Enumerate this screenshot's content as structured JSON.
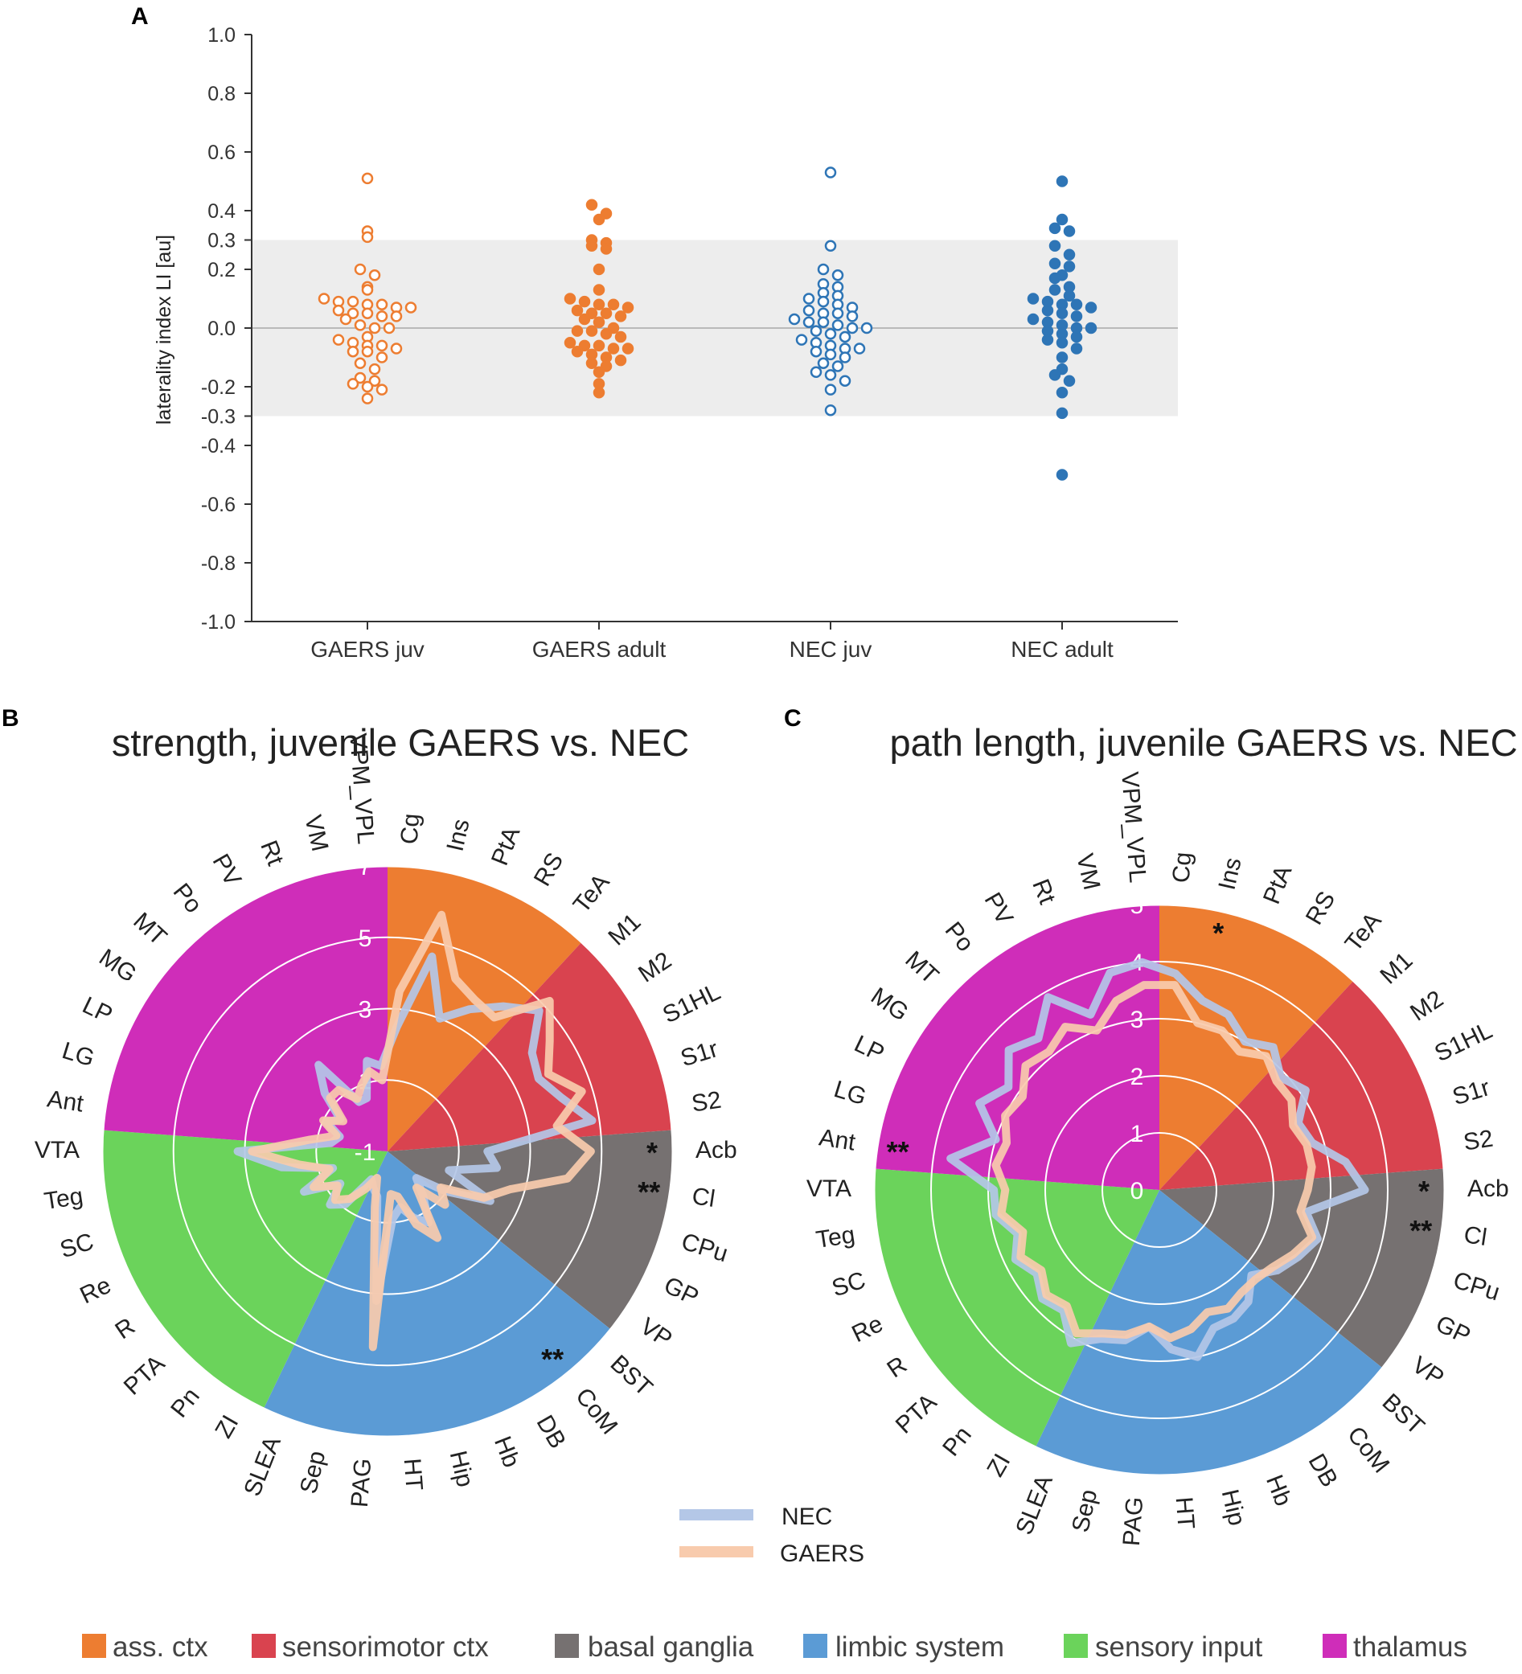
{
  "panels": {
    "A": {
      "label": "A",
      "chart_data": {
        "type": "scatter",
        "ylabel": "laterality index LI [au]",
        "ylim": [
          -1.0,
          1.0
        ],
        "yticks": [
          "1.0",
          "0.8",
          "0.6",
          "0.4",
          "0.3",
          "0.2",
          "0.0",
          "-0.2",
          "-0.3",
          "-0.4",
          "-0.6",
          "-0.8",
          "-1.0"
        ],
        "ytick_values": [
          1.0,
          0.8,
          0.6,
          0.4,
          0.3,
          0.2,
          0.0,
          -0.2,
          -0.3,
          -0.4,
          -0.6,
          -0.8,
          -1.0
        ],
        "shaded_band": [
          -0.3,
          0.3
        ],
        "categories": [
          "GAERS juv",
          "GAERS adult",
          "NEC  juv",
          "NEC adult"
        ],
        "series": [
          {
            "name": "GAERS juv",
            "color": "#ed7d31",
            "filled": false,
            "values": [
              0.51,
              0.33,
              0.31,
              0.2,
              0.18,
              0.14,
              0.13,
              0.1,
              0.09,
              0.09,
              0.08,
              0.08,
              0.07,
              0.07,
              0.06,
              0.05,
              0.05,
              0.04,
              0.04,
              0.03,
              0.01,
              0.0,
              0.0,
              -0.03,
              -0.04,
              -0.05,
              -0.06,
              -0.06,
              -0.07,
              -0.08,
              -0.08,
              -0.1,
              -0.12,
              -0.14,
              -0.17,
              -0.18,
              -0.19,
              -0.2,
              -0.21,
              -0.24
            ]
          },
          {
            "name": "GAERS adult",
            "color": "#ed7d31",
            "filled": true,
            "values": [
              0.42,
              0.39,
              0.37,
              0.3,
              0.29,
              0.28,
              0.27,
              0.2,
              0.13,
              0.1,
              0.09,
              0.08,
              0.08,
              0.07,
              0.06,
              0.05,
              0.05,
              0.04,
              0.03,
              0.02,
              0.0,
              -0.01,
              -0.01,
              -0.02,
              -0.03,
              -0.05,
              -0.06,
              -0.06,
              -0.07,
              -0.07,
              -0.08,
              -0.09,
              -0.1,
              -0.11,
              -0.12,
              -0.13,
              -0.15,
              -0.19,
              -0.22
            ]
          },
          {
            "name": "NEC  juv",
            "color": "#2e75b6",
            "filled": false,
            "values": [
              0.53,
              0.28,
              0.2,
              0.18,
              0.15,
              0.14,
              0.12,
              0.11,
              0.1,
              0.09,
              0.08,
              0.07,
              0.06,
              0.05,
              0.05,
              0.04,
              0.03,
              0.02,
              0.02,
              0.01,
              0.0,
              0.0,
              -0.01,
              -0.02,
              -0.03,
              -0.04,
              -0.05,
              -0.06,
              -0.07,
              -0.07,
              -0.08,
              -0.09,
              -0.1,
              -0.12,
              -0.13,
              -0.15,
              -0.16,
              -0.18,
              -0.21,
              -0.28
            ]
          },
          {
            "name": "NEC adult",
            "color": "#2e75b6",
            "filled": true,
            "values": [
              0.5,
              0.37,
              0.34,
              0.33,
              0.28,
              0.25,
              0.22,
              0.21,
              0.18,
              0.17,
              0.14,
              0.13,
              0.11,
              0.1,
              0.09,
              0.08,
              0.08,
              0.07,
              0.06,
              0.05,
              0.04,
              0.03,
              0.02,
              0.01,
              0.0,
              0.0,
              -0.01,
              -0.02,
              -0.03,
              -0.04,
              -0.05,
              -0.07,
              -0.1,
              -0.14,
              -0.16,
              -0.18,
              -0.22,
              -0.29,
              -0.5
            ]
          }
        ]
      }
    },
    "B": {
      "label": "B",
      "chart_data": {
        "type": "radar",
        "title": "strength, juvenile GAERS vs. NEC",
        "range": [
          -1,
          7
        ],
        "ring_labels": [
          "-1",
          "1",
          "3",
          "5",
          "7"
        ],
        "ring_values": [
          -1,
          1,
          3,
          5,
          7
        ],
        "spokes": [
          "Cg",
          "Ins",
          "PtA",
          "RS",
          "TeA",
          "M1",
          "M2",
          "S1HL",
          "S1r",
          "S2",
          "Acb",
          "Cl",
          "CPu",
          "GP",
          "VP",
          "BST",
          "CoM",
          "DB",
          "Hb",
          "Hip",
          "HT",
          "PAG",
          "Sep",
          "SLEA",
          "ZI",
          "Pn",
          "PTA",
          "R",
          "Re",
          "SC",
          "Teg",
          "VTA",
          "Ant",
          "LG",
          "LP",
          "MG",
          "MT",
          "Po",
          "PV",
          "Rt",
          "VM",
          "VPM_VPL"
        ],
        "series": [
          {
            "name": "NEC",
            "color": "#b4c7e7",
            "values": [
              2.5,
              4.6,
              3.0,
              3.6,
              4.2,
              4.8,
              3.9,
              3.7,
              4.1,
              4.8,
              1.8,
              2.1,
              0.8,
              2.2,
              1.0,
              0.1,
              0.6,
              1.3,
              1.0,
              0.6,
              0.9,
              3.2,
              0.3,
              0.1,
              -0.1,
              0.9,
              1.2,
              0.6,
              1.6,
              0.6,
              2.0,
              3.2,
              0.6,
              0.4,
              0.9,
              0.6,
              1.4,
              2.1,
              0.6,
              0.6,
              1.6,
              1.4
            ]
          },
          {
            "name": "GAERS",
            "color": "#f8cbad",
            "values": [
              3.5,
              5.8,
              4.2,
              3.9,
              3.8,
              5.2,
              4.5,
              4.0,
              4.7,
              3.8,
              4.7,
              4.1,
              2.6,
              2.0,
              0.8,
              1.2,
              0.3,
              1.8,
              1.2,
              0.3,
              0.2,
              4.5,
              0.6,
              -0.2,
              0.2,
              0.7,
              1.0,
              0.7,
              1.3,
              0.7,
              1.5,
              2.8,
              1.2,
              0.5,
              1.0,
              0.5,
              1.2,
              1.2,
              0.7,
              1.0,
              1.3,
              1.0
            ]
          }
        ],
        "significance": [
          {
            "spoke": "Acb",
            "mark": "*"
          },
          {
            "spoke": "Cl",
            "mark": "**"
          },
          {
            "spoke": "CoM",
            "mark": "**"
          }
        ]
      }
    },
    "C": {
      "label": "C",
      "chart_data": {
        "type": "radar",
        "title": "path length, juvenile GAERS vs. NEC",
        "range": [
          0,
          5
        ],
        "ring_labels": [
          "0",
          "1",
          "2",
          "3",
          "4",
          "5"
        ],
        "ring_values": [
          0,
          1,
          2,
          3,
          4,
          5
        ],
        "spokes": [
          "Cg",
          "Ins",
          "PtA",
          "RS",
          "TeA",
          "M1",
          "M2",
          "S1HL",
          "S1r",
          "S2",
          "Acb",
          "Cl",
          "CPu",
          "GP",
          "VP",
          "BST",
          "CoM",
          "DB",
          "Hb",
          "Hip",
          "HT",
          "PAG",
          "Sep",
          "SLEA",
          "ZI",
          "Pn",
          "PTA",
          "R",
          "Re",
          "SC",
          "Teg",
          "VTA",
          "Ant",
          "LG",
          "LP",
          "MG",
          "MT",
          "Po",
          "PV",
          "Rt",
          "VM",
          "VPM_VPL"
        ],
        "series": [
          {
            "name": "NEC",
            "color": "#b4c7e7",
            "values": [
              3.8,
              3.4,
              3.3,
              3.0,
              3.2,
              2.9,
              3.1,
              2.7,
              2.8,
              3.3,
              3.6,
              2.6,
              2.9,
              2.7,
              2.5,
              2.2,
              2.5,
              2.6,
              2.6,
              3.0,
              2.8,
              2.4,
              2.7,
              2.8,
              3.1,
              2.7,
              2.8,
              2.6,
              2.8,
              2.6,
              2.9,
              2.9,
              3.7,
              3.0,
              3.5,
              3.2,
              3.6,
              3.4,
              3.9,
              3.3,
              3.9,
              4.0
            ]
          },
          {
            "name": "GAERS",
            "color": "#f8cbad",
            "values": [
              3.6,
              3.0,
              3.0,
              2.8,
              3.0,
              2.8,
              2.8,
              2.6,
              2.7,
              2.7,
              2.6,
              2.5,
              2.8,
              2.6,
              2.4,
              2.3,
              2.3,
              2.4,
              2.3,
              2.5,
              2.6,
              2.4,
              2.6,
              2.7,
              2.9,
              2.6,
              2.7,
              2.5,
              2.7,
              2.5,
              2.8,
              2.7,
              2.9,
              2.8,
              3.0,
              2.9,
              3.2,
              3.1,
              3.3,
              3.0,
              3.4,
              3.6
            ]
          }
        ],
        "significance": [
          {
            "spoke": "Ins",
            "mark": "*"
          },
          {
            "spoke": "Acb",
            "mark": "*"
          },
          {
            "spoke": "Cl",
            "mark": "**"
          },
          {
            "spoke": "Ant",
            "mark": "**"
          }
        ]
      }
    }
  },
  "legend": [
    {
      "name": "NEC",
      "color": "#b4c7e7"
    },
    {
      "name": "GAERS",
      "color": "#f8cbad"
    }
  ],
  "regions": [
    {
      "name": "ass. ctx",
      "color": "#ed7d31",
      "spokes": [
        "Cg",
        "Ins",
        "PtA",
        "RS",
        "TeA"
      ]
    },
    {
      "name": "sensorimotor ctx",
      "color": "#d9434f",
      "spokes": [
        "M1",
        "M2",
        "S1HL",
        "S1r",
        "S2"
      ]
    },
    {
      "name": "basal ganglia",
      "color": "#767171",
      "spokes": [
        "Acb",
        "Cl",
        "CPu",
        "GP",
        "VP"
      ]
    },
    {
      "name": "limbic system",
      "color": "#5b9bd5",
      "spokes": [
        "BST",
        "CoM",
        "DB",
        "Hb",
        "Hip",
        "HT",
        "PAG",
        "Sep",
        "SLEA"
      ]
    },
    {
      "name": "sensory input",
      "color": "#6bd35b",
      "spokes": [
        "ZI",
        "Pn",
        "PTA",
        "R",
        "Re",
        "SC",
        "Teg",
        "VTA"
      ]
    },
    {
      "name": "thalamus",
      "color": "#cf2db9",
      "spokes": [
        "Ant",
        "LG",
        "LP",
        "MG",
        "MT",
        "Po",
        "PV",
        "Rt",
        "VM",
        "VPM_VPL"
      ]
    }
  ]
}
